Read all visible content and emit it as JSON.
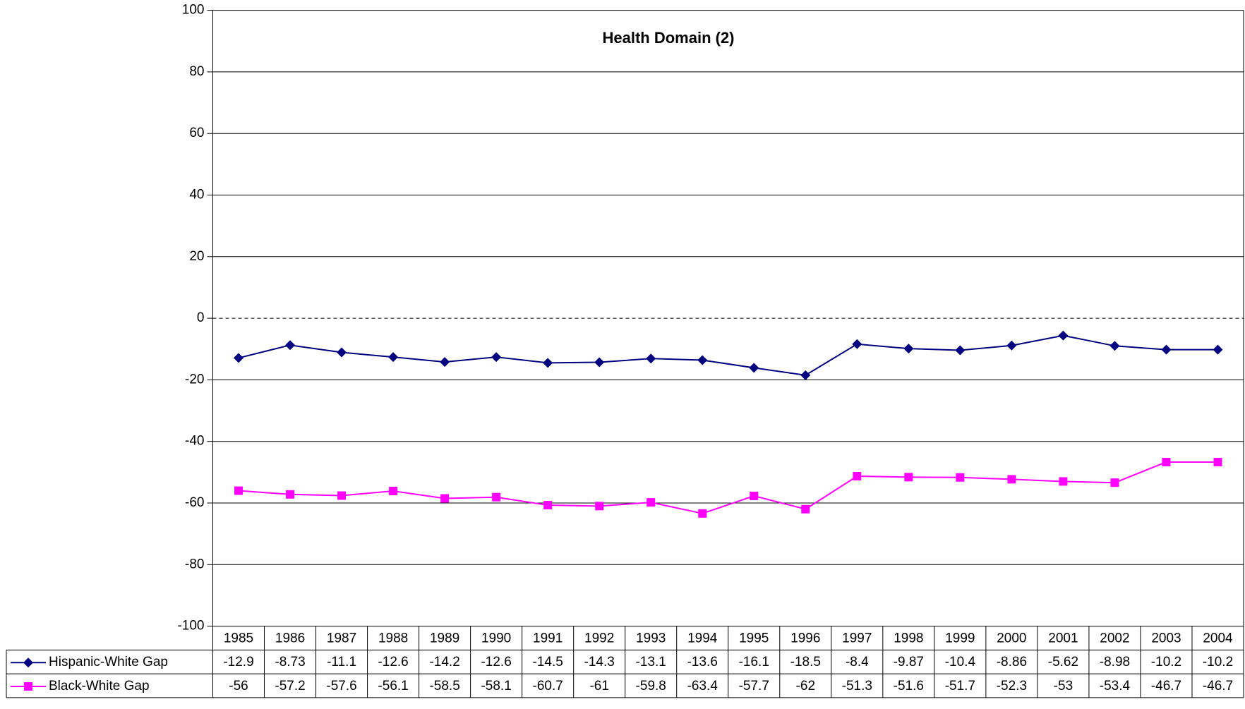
{
  "chart_data": {
    "type": "line",
    "title": "Health Domain (2)",
    "categories": [
      "1985",
      "1986",
      "1987",
      "1988",
      "1989",
      "1990",
      "1991",
      "1992",
      "1993",
      "1994",
      "1995",
      "1996",
      "1997",
      "1998",
      "1999",
      "2000",
      "2001",
      "2002",
      "2003",
      "2004"
    ],
    "series": [
      {
        "name": "Hispanic-White Gap",
        "color": "#000080",
        "marker": "diamond",
        "values": [
          -12.9,
          -8.73,
          -11.1,
          -12.6,
          -14.2,
          -12.6,
          -14.5,
          -14.3,
          -13.1,
          -13.6,
          -16.1,
          -18.5,
          -8.4,
          -9.87,
          -10.4,
          -8.86,
          -5.62,
          -8.98,
          -10.2,
          -10.2
        ]
      },
      {
        "name": "Black-White Gap",
        "color": "#ff00ff",
        "marker": "square",
        "values": [
          -56,
          -57.2,
          -57.6,
          -56.1,
          -58.5,
          -58.1,
          -60.7,
          -61,
          -59.8,
          -63.4,
          -57.7,
          -62,
          -51.3,
          -51.6,
          -51.7,
          -52.3,
          -53,
          -53.4,
          -46.7,
          -46.7
        ]
      }
    ],
    "ylim": [
      -100,
      100
    ],
    "yticks": [
      -100,
      -80,
      -60,
      -40,
      -20,
      0,
      20,
      40,
      60,
      80,
      100
    ],
    "grid": true,
    "data_table": true
  }
}
